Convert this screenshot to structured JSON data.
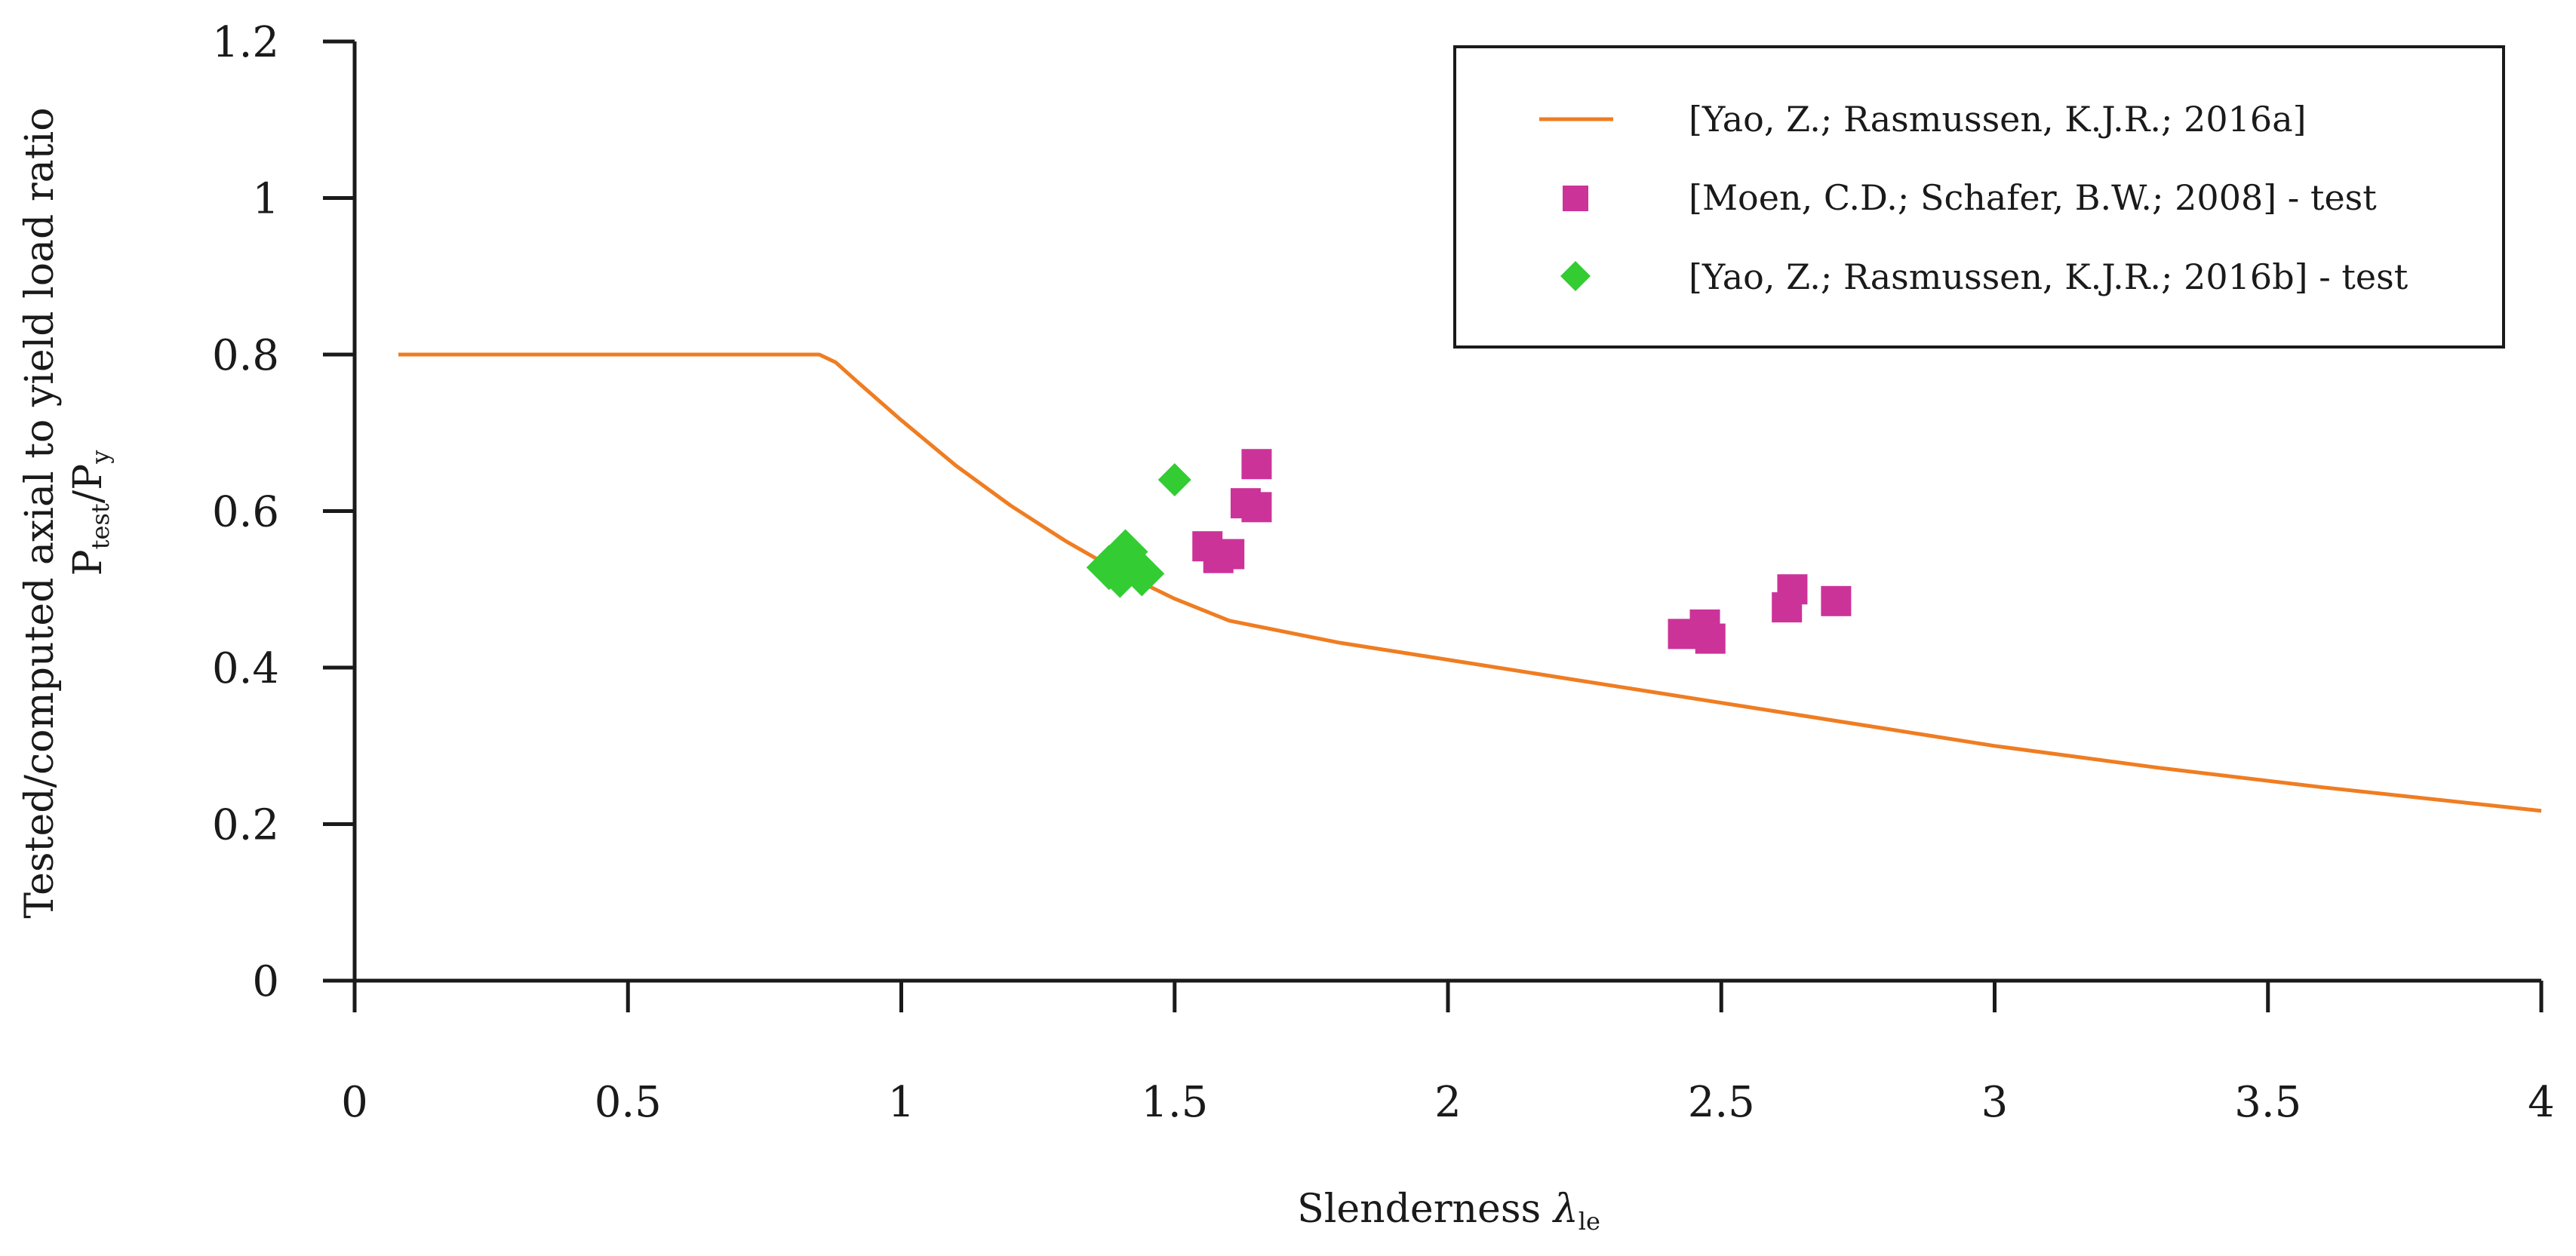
{
  "chart_data": {
    "type": "scatter",
    "title": "",
    "xlabel": "Slenderness λle",
    "xlabel_main": "Slenderness ",
    "xlabel_symbol": "λ",
    "xlabel_sub": "le",
    "ylabel_line1": "Tested/computed axial to yield load ratio",
    "ylabel_line2_main": "P",
    "ylabel_line2_sub1": "test",
    "ylabel_line2_mid": "/P",
    "ylabel_line2_sub2": "y",
    "xlim": [
      0,
      4
    ],
    "ylim": [
      0,
      1.2
    ],
    "xticks": [
      0,
      0.5,
      1,
      1.5,
      2,
      2.5,
      3,
      3.5,
      4
    ],
    "xtick_labels": [
      "0",
      "0.5",
      "1",
      "1.5",
      "2",
      "2.5",
      "3",
      "3.5",
      "4"
    ],
    "yticks": [
      0,
      0.2,
      0.4,
      0.6,
      0.8,
      1,
      1.2
    ],
    "ytick_labels": [
      "0",
      "0.2",
      "0.4",
      "0.6",
      "0.8",
      "1",
      "1.2"
    ],
    "grid": false,
    "legend_position": "top-right",
    "colors": {
      "curve": "#ef7d22",
      "moen": "#cc3399",
      "yao_test": "#33cc33",
      "axis": "#1a1a1a"
    },
    "series": [
      {
        "name": "[Yao, Z.; Rasmussen, K.J.R.; 2016a]",
        "kind": "line",
        "x": [
          0.08,
          0.85,
          0.88,
          0.92,
          1.0,
          1.1,
          1.2,
          1.3,
          1.4,
          1.5,
          1.6,
          1.8,
          2.0,
          2.2,
          2.5,
          2.8,
          3.0,
          3.3,
          3.6,
          4.0
        ],
        "y": [
          0.8,
          0.8,
          0.79,
          0.765,
          0.716,
          0.658,
          0.607,
          0.562,
          0.522,
          0.488,
          0.46,
          0.432,
          0.41,
          0.388,
          0.355,
          0.322,
          0.3,
          0.272,
          0.247,
          0.217
        ]
      },
      {
        "name": "[Moen, C.D.; Schafer, B.W.; 2008] - test",
        "kind": "scatter",
        "marker": "square",
        "x": [
          1.56,
          1.58,
          1.6,
          1.63,
          1.65,
          1.65,
          2.43,
          2.47,
          2.48,
          2.62,
          2.63,
          2.71
        ],
        "y": [
          0.555,
          0.54,
          0.545,
          0.61,
          0.605,
          0.66,
          0.443,
          0.455,
          0.437,
          0.477,
          0.5,
          0.485
        ]
      },
      {
        "name": "[Yao, Z.; Rasmussen, K.J.R.; 2016b] - test",
        "kind": "scatter",
        "marker": "diamond",
        "x": [
          1.38,
          1.4,
          1.41,
          1.42,
          1.44,
          1.5
        ],
        "y": [
          0.528,
          0.518,
          0.548,
          0.532,
          0.52,
          0.64
        ]
      }
    ]
  }
}
